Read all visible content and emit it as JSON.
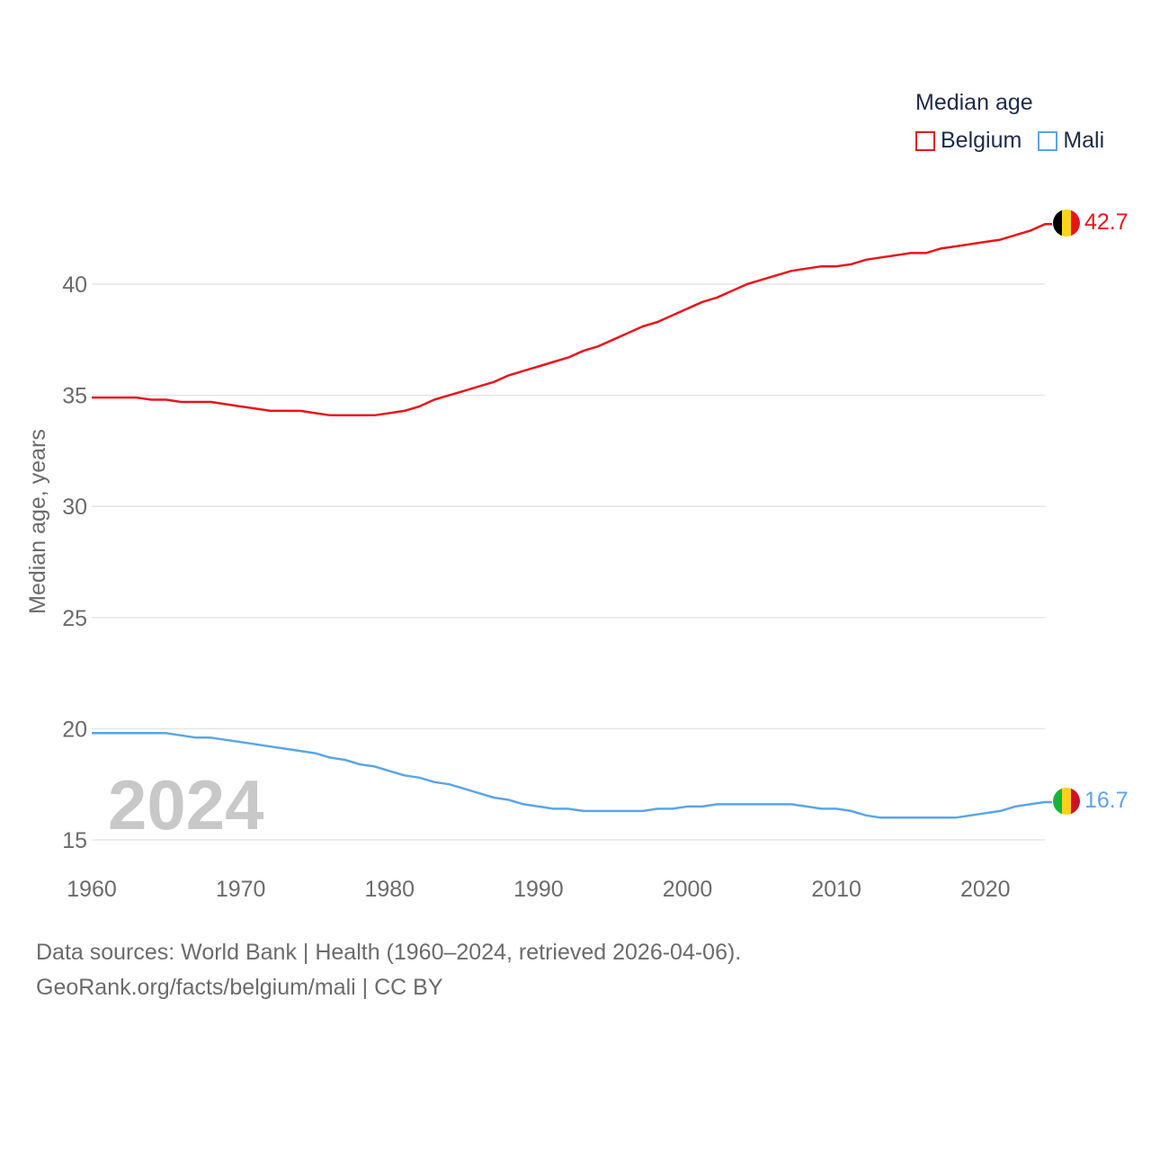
{
  "colors": {
    "belgium": "#e8141c",
    "mali": "#5aa5e6",
    "grid": "#e6e6e6",
    "axis_text": "#6b6b6b",
    "year_watermark": "#c8c8c8"
  },
  "legend": {
    "title": "Median age",
    "items": [
      {
        "name": "Belgium",
        "color": "#e8141c"
      },
      {
        "name": "Mali",
        "color": "#5aa5e6"
      }
    ]
  },
  "year_label": "2024",
  "end_labels": {
    "belgium": "42.7",
    "mali": "16.7"
  },
  "footer": {
    "line1": "Data sources: World Bank | Health (1960–2024, retrieved 2026-04-06).",
    "line2": "GeoRank.org/facts/belgium/mali | CC BY"
  },
  "chart_data": {
    "type": "line",
    "title": "Median age",
    "xlabel": "",
    "ylabel": "Median age, years",
    "xlim": [
      1960,
      2024
    ],
    "ylim": [
      15,
      43
    ],
    "yticks": [
      15,
      20,
      25,
      30,
      35,
      40
    ],
    "xticks": [
      1960,
      1970,
      1980,
      1990,
      2000,
      2010,
      2020
    ],
    "x": [
      1960,
      1961,
      1962,
      1963,
      1964,
      1965,
      1966,
      1967,
      1968,
      1969,
      1970,
      1971,
      1972,
      1973,
      1974,
      1975,
      1976,
      1977,
      1978,
      1979,
      1980,
      1981,
      1982,
      1983,
      1984,
      1985,
      1986,
      1987,
      1988,
      1989,
      1990,
      1991,
      1992,
      1993,
      1994,
      1995,
      1996,
      1997,
      1998,
      1999,
      2000,
      2001,
      2002,
      2003,
      2004,
      2005,
      2006,
      2007,
      2008,
      2009,
      2010,
      2011,
      2012,
      2013,
      2014,
      2015,
      2016,
      2017,
      2018,
      2019,
      2020,
      2021,
      2022,
      2023,
      2024
    ],
    "series": [
      {
        "name": "Belgium",
        "values": [
          34.9,
          34.9,
          34.9,
          34.9,
          34.8,
          34.8,
          34.7,
          34.7,
          34.7,
          34.6,
          34.5,
          34.4,
          34.3,
          34.3,
          34.3,
          34.2,
          34.1,
          34.1,
          34.1,
          34.1,
          34.2,
          34.3,
          34.5,
          34.8,
          35.0,
          35.2,
          35.4,
          35.6,
          35.9,
          36.1,
          36.3,
          36.5,
          36.7,
          37.0,
          37.2,
          37.5,
          37.8,
          38.1,
          38.3,
          38.6,
          38.9,
          39.2,
          39.4,
          39.7,
          40.0,
          40.2,
          40.4,
          40.6,
          40.7,
          40.8,
          40.8,
          40.9,
          41.1,
          41.2,
          41.3,
          41.4,
          41.4,
          41.6,
          41.7,
          41.8,
          41.9,
          42.0,
          42.2,
          42.4,
          42.7
        ]
      },
      {
        "name": "Mali",
        "values": [
          19.8,
          19.8,
          19.8,
          19.8,
          19.8,
          19.8,
          19.7,
          19.6,
          19.6,
          19.5,
          19.4,
          19.3,
          19.2,
          19.1,
          19.0,
          18.9,
          18.7,
          18.6,
          18.4,
          18.3,
          18.1,
          17.9,
          17.8,
          17.6,
          17.5,
          17.3,
          17.1,
          16.9,
          16.8,
          16.6,
          16.5,
          16.4,
          16.4,
          16.3,
          16.3,
          16.3,
          16.3,
          16.3,
          16.4,
          16.4,
          16.5,
          16.5,
          16.6,
          16.6,
          16.6,
          16.6,
          16.6,
          16.6,
          16.5,
          16.4,
          16.4,
          16.3,
          16.1,
          16.0,
          16.0,
          16.0,
          16.0,
          16.0,
          16.0,
          16.1,
          16.2,
          16.3,
          16.5,
          16.6,
          16.7
        ]
      }
    ]
  }
}
